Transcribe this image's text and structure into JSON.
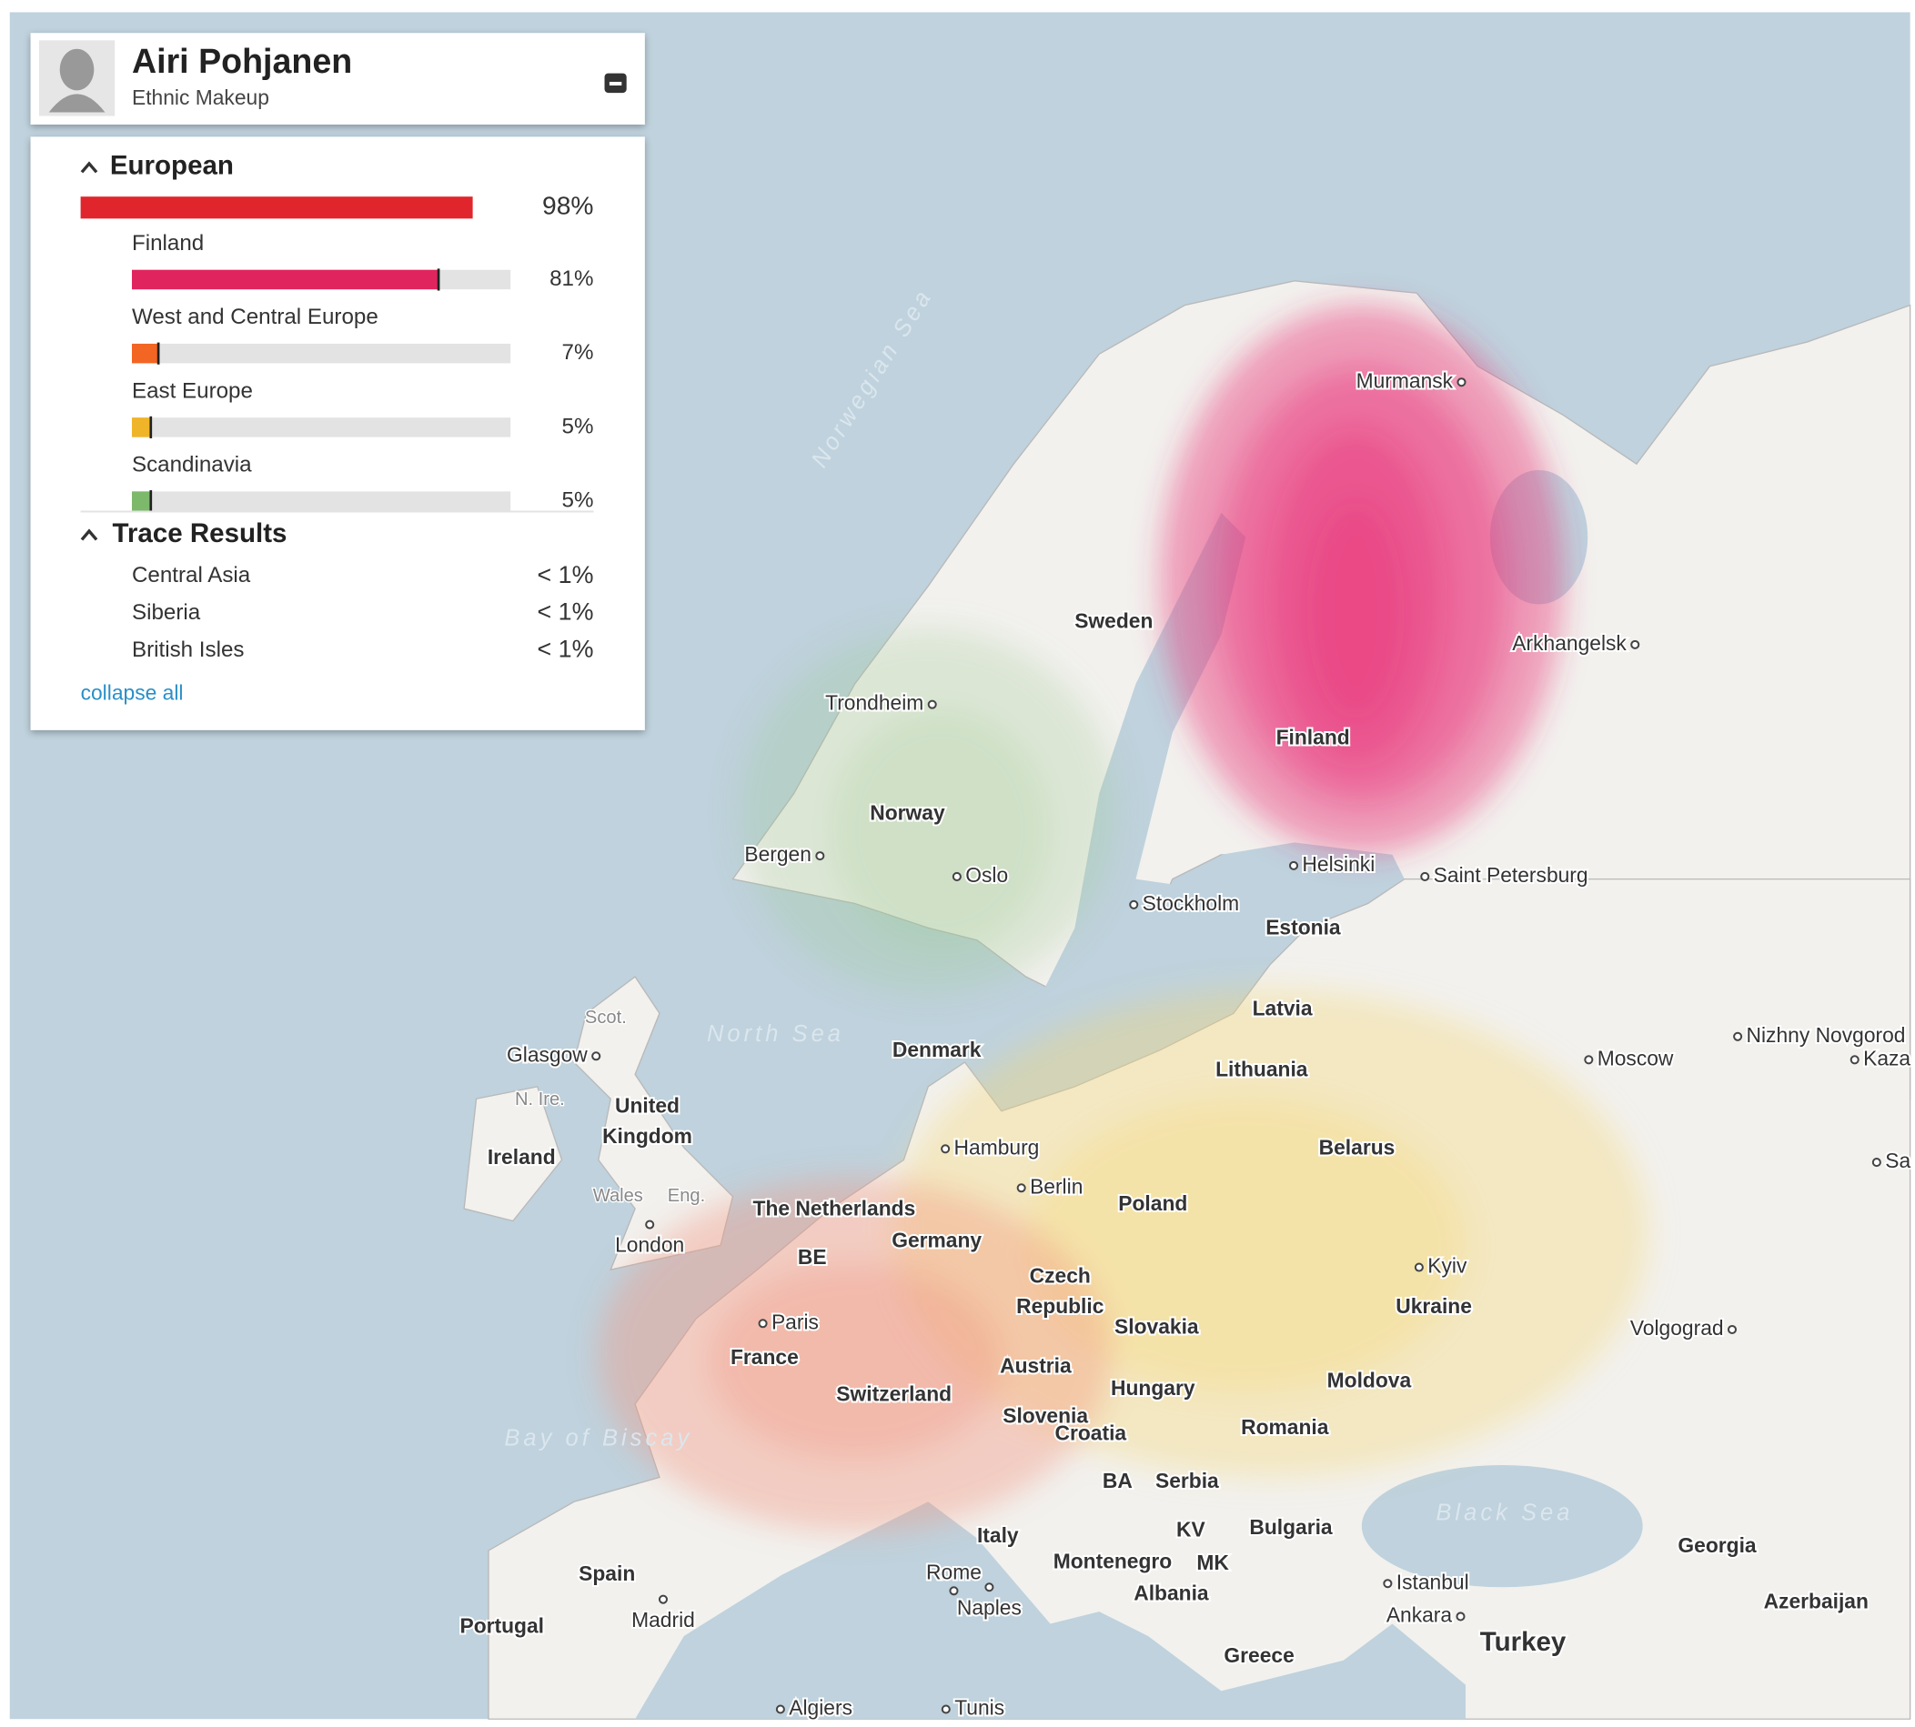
{
  "panel": {
    "name": "Airi Pohjanen",
    "subtitle": "Ethnic Makeup",
    "groups": [
      {
        "title": "European",
        "value": 98,
        "value_label": "98%",
        "color": "#e0262c",
        "items": [
          {
            "name": "Finland",
            "value": 81,
            "value_label": "81%",
            "color": "#e0245e"
          },
          {
            "name": "West and Central Europe",
            "value": 7,
            "value_label": "7%",
            "color": "#f26522"
          },
          {
            "name": "East Europe",
            "value": 5,
            "value_label": "5%",
            "color": "#f0b429"
          },
          {
            "name": "Scandinavia",
            "value": 5,
            "value_label": "5%",
            "color": "#7cb96b"
          }
        ]
      }
    ],
    "trace": {
      "title": "Trace Results",
      "items": [
        {
          "name": "Central Asia",
          "value_label": "< 1%"
        },
        {
          "name": "Siberia",
          "value_label": "< 1%"
        },
        {
          "name": "British Isles",
          "value_label": "< 1%"
        }
      ]
    },
    "collapse": "collapse all"
  },
  "map": {
    "labels": [
      "Norwegian Sea",
      "Murmansk",
      "Arkhangelsk",
      "Sweden",
      "Finland",
      "Trondheim",
      "Norway",
      "Bergen",
      "Oslo",
      "Helsinki",
      "Saint Petersburg",
      "Stockholm",
      "Estonia",
      "Latvia",
      "Lithuania",
      "Scot.",
      "Glasgow",
      "North Sea",
      "Denmark",
      "Moscow",
      "Nizhny Novgorod",
      "Kaza",
      "N. Ire.",
      "United Kingdom",
      "Ireland",
      "Belarus",
      "Hamburg",
      "Berlin",
      "Sa",
      "Wales",
      "Eng.",
      "Poland",
      "The Netherlands",
      "Germany",
      "London",
      "BE",
      "Czech Republic",
      "Kyiv",
      "Ukraine",
      "Paris",
      "Slovakia",
      "Volgograd",
      "France",
      "Austria",
      "Switzerland",
      "Hungary",
      "Moldova",
      "Slovenia",
      "Croatia",
      "Romania",
      "Bay of Biscay",
      "BA",
      "Serbia",
      "Black Sea",
      "KV",
      "Bulgaria",
      "Italy",
      "Georgia",
      "Montenegro",
      "MK",
      "Spain",
      "Rome",
      "Istanbul",
      "Albania",
      "Azerbaijan",
      "Madrid",
      "Portugal",
      "Naples",
      "Ankara",
      "Turkey",
      "Greece",
      "Algiers",
      "Tunis"
    ]
  }
}
